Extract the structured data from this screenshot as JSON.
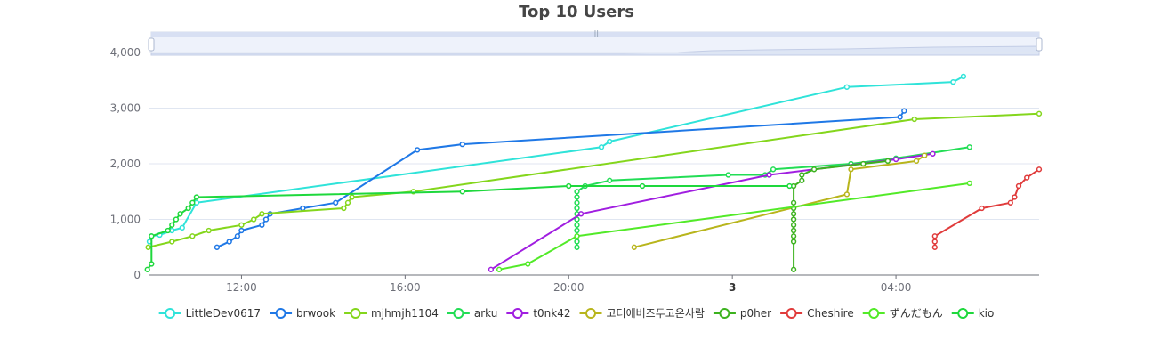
{
  "chart_data": {
    "type": "line",
    "title": "Top 10 Users",
    "ylim": [
      0,
      4000
    ],
    "y_ticks": [
      "0",
      "1,000",
      "2,000",
      "3,000",
      "4,000"
    ],
    "x_range_hours": [
      9.75,
      31.5
    ],
    "x_ticks": [
      {
        "t": 12,
        "label": "12:00",
        "bold": false
      },
      {
        "t": 16,
        "label": "16:00",
        "bold": false
      },
      {
        "t": 20,
        "label": "20:00",
        "bold": false
      },
      {
        "t": 24,
        "label": "3",
        "bold": true
      },
      {
        "t": 28,
        "label": "04:00",
        "bold": false
      }
    ],
    "grid": true,
    "legend_position": "bottom",
    "datazoom_slider": true,
    "series": [
      {
        "name": "LittleDev0617",
        "color": "#2fe3d9",
        "points": [
          [
            9.75,
            600
          ],
          [
            9.8,
            700
          ],
          [
            10.0,
            720
          ],
          [
            10.3,
            800
          ],
          [
            10.55,
            850
          ],
          [
            10.9,
            1300
          ],
          [
            20.8,
            2300
          ],
          [
            21.0,
            2400
          ],
          [
            26.8,
            3380
          ],
          [
            29.4,
            3470
          ],
          [
            29.65,
            3570
          ]
        ]
      },
      {
        "name": "brwook",
        "color": "#1f78e6",
        "points": [
          [
            11.4,
            500
          ],
          [
            11.7,
            600
          ],
          [
            11.9,
            700
          ],
          [
            12.0,
            800
          ],
          [
            12.5,
            900
          ],
          [
            12.6,
            1000
          ],
          [
            12.7,
            1100
          ],
          [
            13.5,
            1200
          ],
          [
            14.3,
            1300
          ],
          [
            16.3,
            2250
          ],
          [
            17.4,
            2350
          ],
          [
            28.1,
            2840
          ],
          [
            28.2,
            2950
          ]
        ]
      },
      {
        "name": "mjhmjh1104",
        "color": "#84d61c",
        "points": [
          [
            9.72,
            500
          ],
          [
            10.3,
            600
          ],
          [
            10.8,
            700
          ],
          [
            11.2,
            800
          ],
          [
            12.0,
            900
          ],
          [
            12.3,
            1000
          ],
          [
            12.5,
            1100
          ],
          [
            14.5,
            1200
          ],
          [
            14.6,
            1300
          ],
          [
            14.7,
            1400
          ],
          [
            16.2,
            1500
          ],
          [
            28.45,
            2800
          ],
          [
            31.5,
            2900
          ]
        ]
      },
      {
        "name": "arku",
        "color": "#22dd55",
        "points": [
          [
            20.2,
            500
          ],
          [
            20.2,
            600
          ],
          [
            20.2,
            700
          ],
          [
            20.2,
            800
          ],
          [
            20.2,
            900
          ],
          [
            20.2,
            1000
          ],
          [
            20.2,
            1100
          ],
          [
            20.2,
            1200
          ],
          [
            20.2,
            1300
          ],
          [
            20.2,
            1400
          ],
          [
            20.2,
            1500
          ],
          [
            20.4,
            1600
          ],
          [
            21.0,
            1700
          ],
          [
            23.9,
            1800
          ],
          [
            24.8,
            1800
          ],
          [
            25.0,
            1900
          ],
          [
            26.9,
            2000
          ],
          [
            28.0,
            2100
          ],
          [
            29.8,
            2300
          ]
        ]
      },
      {
        "name": "t0nk42",
        "color": "#a01ee0",
        "points": [
          [
            18.1,
            100
          ],
          [
            20.3,
            1100
          ],
          [
            24.9,
            1800
          ],
          [
            28.0,
            2080
          ],
          [
            28.9,
            2180
          ]
        ]
      },
      {
        "name": "고터에버즈두고온사람",
        "color": "#b8b51c",
        "points": [
          [
            21.6,
            500
          ],
          [
            26.8,
            1450
          ],
          [
            26.9,
            1900
          ],
          [
            28.5,
            2050
          ],
          [
            28.7,
            2150
          ]
        ]
      },
      {
        "name": "p0her",
        "color": "#3cb21e",
        "points": [
          [
            25.5,
            100
          ],
          [
            25.5,
            600
          ],
          [
            25.5,
            700
          ],
          [
            25.5,
            800
          ],
          [
            25.5,
            900
          ],
          [
            25.5,
            1000
          ],
          [
            25.5,
            1100
          ],
          [
            25.5,
            1200
          ],
          [
            25.5,
            1300
          ],
          [
            25.5,
            1600
          ],
          [
            25.7,
            1700
          ],
          [
            25.7,
            1800
          ],
          [
            26.0,
            1900
          ],
          [
            27.2,
            2000
          ],
          [
            27.8,
            2050
          ]
        ]
      },
      {
        "name": "Cheshire",
        "color": "#e03b3b",
        "points": [
          [
            28.95,
            500
          ],
          [
            28.95,
            600
          ],
          [
            28.95,
            700
          ],
          [
            30.1,
            1200
          ],
          [
            30.8,
            1300
          ],
          [
            30.9,
            1400
          ],
          [
            31.0,
            1600
          ],
          [
            31.2,
            1750
          ],
          [
            31.5,
            1900
          ]
        ]
      },
      {
        "name": "ずんだもん",
        "color": "#52ea28",
        "points": [
          [
            18.3,
            100
          ],
          [
            19.0,
            200
          ],
          [
            20.2,
            700
          ],
          [
            29.8,
            1650
          ]
        ]
      },
      {
        "name": "kio",
        "color": "#1ed83c",
        "points": [
          [
            9.7,
            100
          ],
          [
            9.8,
            200
          ],
          [
            9.8,
            700
          ],
          [
            10.2,
            800
          ],
          [
            10.3,
            900
          ],
          [
            10.4,
            1000
          ],
          [
            10.5,
            1100
          ],
          [
            10.7,
            1200
          ],
          [
            10.8,
            1300
          ],
          [
            10.9,
            1400
          ],
          [
            17.4,
            1500
          ],
          [
            20.0,
            1600
          ],
          [
            21.8,
            1600
          ],
          [
            25.4,
            1600
          ]
        ]
      }
    ]
  }
}
